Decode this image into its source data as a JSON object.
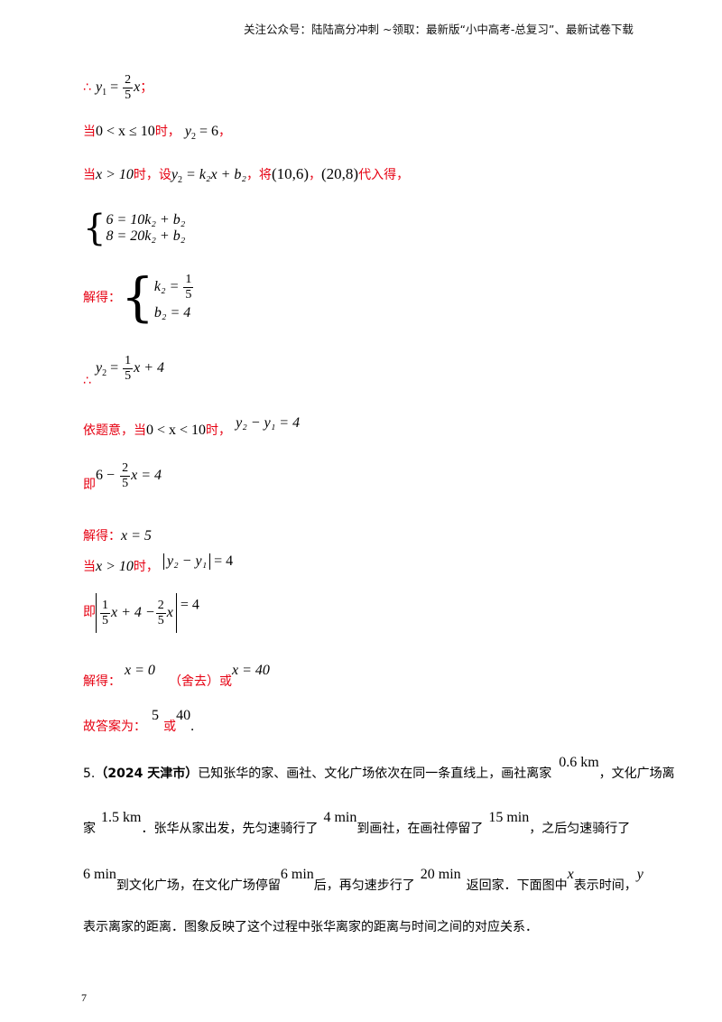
{
  "header": {
    "text": "关注公众号：陆陆高分冲刺  ~领取：最新版“小中高考-总复习”、最新试卷下载"
  },
  "sol": {
    "therefore": "∴",
    "eq_y1_lhs": "y",
    "eq_y1_eq": "=",
    "frac_2": "2",
    "frac_5": "5",
    "var_x": "x",
    "semicolon": "；",
    "when": "当",
    "cond1": "0 < x ≤ 10",
    "shi_comma": "时，",
    "y2_eq_6": "= 6",
    "comma": "，",
    "cond2": "x > 10",
    "shi_she": "时，设",
    "line_form": "= k₂x + b₂",
    "jiang": "，将",
    "pt1": "(10,6)",
    "pt2": "(20,8)",
    "daiRu": "代入得，",
    "sys1_l1": "6 = 10k₂ + b₂",
    "sys1_l2": "8 = 20k₂ + b₂",
    "jiede": "解得：",
    "sys2_l1_lhs": "k₂ =",
    "frac_1": "1",
    "sys2_l2": "b₂ = 4",
    "plus4": "x + 4",
    "yitiyi": "依题意，当",
    "cond3": "0 < x < 10",
    "shi_comma2": "时，",
    "diff_eq": "y₂ − y₁ = 4",
    "ji": "即",
    "six_minus": "6 −",
    "x_eq_4": "x = 4",
    "x_eq_5": "x = 5",
    "abs_diff": "y₂ − y₁",
    "eq4": "= 4",
    "abs_inner_mid": "x + 4 −",
    "abs_inner_end": "x",
    "x_eq_0": "x = 0",
    "shequ": "（舍去）或",
    "x_eq_40": "x = 40",
    "answer_label": "故答案为：",
    "ans1": "5",
    "huo": "或",
    "ans2": "40",
    "period": "."
  },
  "problem": {
    "num": "5.",
    "source": "（2024 天津市）",
    "p1": "已知张华的家、画社、文化广场依次在同一条直线上，画社离家",
    "d1": "0.6 km",
    "p2": "，文化广场离",
    "p3": "家",
    "d2": "1.5 km",
    "p4": "．张华从家出发，先匀速骑行了",
    "t1": "4 min",
    "p5": "到画社，在画社停留了",
    "t2": "15 min",
    "p6": "，之后匀速骑行了",
    "t3": "6 min",
    "p7": "到文化广场，在文化广场停留",
    "t4": "6 min",
    "p8": "后，再匀速步行了",
    "t5": "20 min",
    "p9": "返回家．下面图中",
    "vx": "x",
    "p10": "表示时间，",
    "vy": "y",
    "p11": "表示离家的距离．图象反映了这个过程中张华离家的距离与时间之间的对应关系．"
  },
  "page_number": "7"
}
